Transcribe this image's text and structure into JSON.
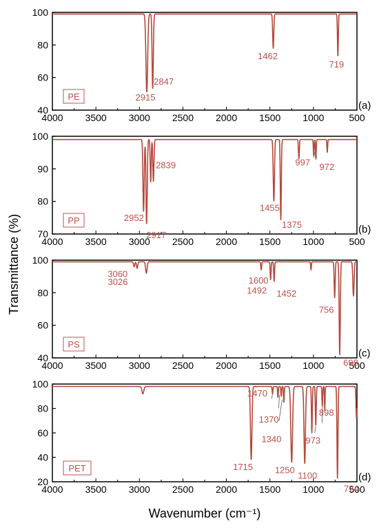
{
  "ylabel": "Transmittance (%)",
  "xlabel": "Wavenumber (cm⁻¹)",
  "colors": {
    "trace": "#b5473a",
    "label": "#c0504d",
    "axis": "#000000"
  },
  "chart_data": [
    {
      "type": "line",
      "panel": "(a)",
      "sample": "PE",
      "xlim": [
        4000,
        500
      ],
      "ylim": [
        40,
        100
      ],
      "x_ticks": [
        "4000",
        "3500",
        "3000",
        "2500",
        "2000",
        "1500",
        "1000",
        "500"
      ],
      "y_ticks": [
        "40",
        "60",
        "80",
        "100"
      ],
      "grid": false,
      "baseline": 99,
      "peaks": [
        {
          "x": 2915,
          "y": 51,
          "w": 14,
          "label": "2915"
        },
        {
          "x": 2847,
          "y": 53,
          "w": 10,
          "label": "2847"
        },
        {
          "x": 1462,
          "y": 78,
          "w": 9,
          "label": "1462"
        },
        {
          "x": 719,
          "y": 73,
          "w": 7,
          "label": "719"
        }
      ]
    },
    {
      "type": "line",
      "panel": "(b)",
      "sample": "PP",
      "xlim": [
        4000,
        500
      ],
      "ylim": [
        70,
        100
      ],
      "x_ticks": [
        "4000",
        "3500",
        "3000",
        "2500",
        "2000",
        "1500",
        "1000",
        "500"
      ],
      "y_ticks": [
        "70",
        "80",
        "90",
        "100"
      ],
      "grid": false,
      "baseline": 99,
      "peaks": [
        {
          "x": 2952,
          "y": 77,
          "w": 10,
          "label": "2952"
        },
        {
          "x": 2917,
          "y": 73,
          "w": 10,
          "label": "2917"
        },
        {
          "x": 2870,
          "y": 86,
          "w": 8,
          "label": ""
        },
        {
          "x": 2839,
          "y": 86,
          "w": 9,
          "label": "2839"
        },
        {
          "x": 1455,
          "y": 80,
          "w": 10,
          "label": "1455"
        },
        {
          "x": 1375,
          "y": 74,
          "w": 8,
          "label": "1375"
        },
        {
          "x": 1167,
          "y": 93,
          "w": 7,
          "label": ""
        },
        {
          "x": 997,
          "y": 94,
          "w": 6,
          "label": "997"
        },
        {
          "x": 972,
          "y": 93,
          "w": 6,
          "label": "972"
        },
        {
          "x": 841,
          "y": 95,
          "w": 6,
          "label": ""
        }
      ]
    },
    {
      "type": "line",
      "panel": "(c)",
      "sample": "PS",
      "xlim": [
        4000,
        500
      ],
      "ylim": [
        40,
        100
      ],
      "x_ticks": [
        "4000",
        "3500",
        "3000",
        "2500",
        "2000",
        "1500",
        "1000",
        "500"
      ],
      "y_ticks": [
        "40",
        "60",
        "80",
        "100"
      ],
      "grid": false,
      "baseline": 99,
      "peaks": [
        {
          "x": 3060,
          "y": 96,
          "w": 10,
          "label": "3060"
        },
        {
          "x": 3026,
          "y": 95,
          "w": 10,
          "label": "3026"
        },
        {
          "x": 2920,
          "y": 92,
          "w": 12,
          "label": ""
        },
        {
          "x": 1600,
          "y": 94,
          "w": 7,
          "label": "1600"
        },
        {
          "x": 1492,
          "y": 88,
          "w": 7,
          "label": "1492"
        },
        {
          "x": 1452,
          "y": 87,
          "w": 7,
          "label": "1452"
        },
        {
          "x": 1028,
          "y": 94,
          "w": 6,
          "label": ""
        },
        {
          "x": 756,
          "y": 77,
          "w": 8,
          "label": "756"
        },
        {
          "x": 698,
          "y": 42,
          "w": 9,
          "label": "698"
        },
        {
          "x": 540,
          "y": 78,
          "w": 10,
          "label": ""
        }
      ]
    },
    {
      "type": "line",
      "panel": "(d)",
      "sample": "PET",
      "xlim": [
        4000,
        500
      ],
      "ylim": [
        20,
        100
      ],
      "x_ticks": [
        "4000",
        "3500",
        "3000",
        "2500",
        "2000",
        "1500",
        "1000",
        "500"
      ],
      "y_ticks": [
        "20",
        "40",
        "60",
        "80",
        "100"
      ],
      "grid": false,
      "baseline": 98,
      "peaks": [
        {
          "x": 2960,
          "y": 92,
          "w": 15,
          "label": ""
        },
        {
          "x": 1715,
          "y": 38,
          "w": 12,
          "label": "1715"
        },
        {
          "x": 1470,
          "y": 92,
          "w": 6,
          "label": "1470"
        },
        {
          "x": 1408,
          "y": 89,
          "w": 6,
          "label": ""
        },
        {
          "x": 1370,
          "y": 90,
          "w": 6,
          "label": "1370"
        },
        {
          "x": 1340,
          "y": 85,
          "w": 6,
          "label": "1340"
        },
        {
          "x": 1250,
          "y": 36,
          "w": 14,
          "label": "1250"
        },
        {
          "x": 1100,
          "y": 35,
          "w": 12,
          "label": "1100"
        },
        {
          "x": 1018,
          "y": 60,
          "w": 7,
          "label": ""
        },
        {
          "x": 973,
          "y": 66,
          "w": 7,
          "label": "973"
        },
        {
          "x": 898,
          "y": 82,
          "w": 6,
          "label": "898"
        },
        {
          "x": 870,
          "y": 78,
          "w": 5,
          "label": ""
        },
        {
          "x": 724,
          "y": 23,
          "w": 8,
          "label": "724"
        },
        {
          "x": 505,
          "y": 72,
          "w": 8,
          "label": ""
        }
      ]
    }
  ]
}
